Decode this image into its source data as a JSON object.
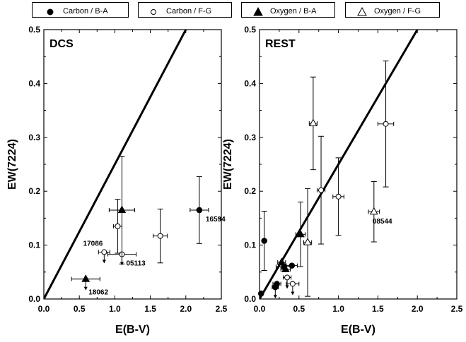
{
  "legend": [
    {
      "label": "Carbon / B-A",
      "marker": "filled-circle"
    },
    {
      "label": "Carbon / F-G",
      "marker": "open-circle"
    },
    {
      "label": "Oxygen / B-A",
      "marker": "filled-triangle"
    },
    {
      "label": "Oxygen / F-G",
      "marker": "open-triangle"
    }
  ],
  "chart_data": [
    {
      "type": "scatter",
      "title": "DCS",
      "xlabel": "E(B-V)",
      "ylabel": "EW(7224)",
      "xlim": [
        0.0,
        2.5
      ],
      "ylim": [
        0.0,
        0.5
      ],
      "xticks": [
        "0.0",
        "0.5",
        "1.0",
        "1.5",
        "2.0",
        "2.5"
      ],
      "yticks": [
        "0.0",
        "0.1",
        "0.2",
        "0.3",
        "0.4",
        "0.5"
      ],
      "reference_line": {
        "x": [
          0.0,
          2.0
        ],
        "y": [
          0.0,
          0.5
        ]
      },
      "series": [
        {
          "name": "Carbon / B-A",
          "marker": "filled-circle",
          "points": [
            {
              "x": 2.19,
              "y": 0.165,
              "xerr": 0.13,
              "yerr": 0.062,
              "label": "16594"
            }
          ]
        },
        {
          "name": "Carbon / F-G",
          "marker": "open-circle",
          "points": [
            {
              "x": 0.85,
              "y": 0.087,
              "xerr": 0.08,
              "yerr": 0.0,
              "label": "17086",
              "upper_limit": true
            },
            {
              "x": 1.1,
              "y": 0.083,
              "xerr": 0.2,
              "yerr": 0.0,
              "label": "05113",
              "upper_limit": true
            },
            {
              "x": 1.64,
              "y": 0.117,
              "xerr": 0.1,
              "yerr": 0.05
            },
            {
              "x": 1.04,
              "y": 0.135,
              "xerr": 0.06,
              "yerr": 0.05
            }
          ]
        },
        {
          "name": "Oxygen / B-A",
          "marker": "filled-triangle",
          "points": [
            {
              "x": 1.1,
              "y": 0.165,
              "xerr": 0.18,
              "yerr": 0.1
            },
            {
              "x": 0.59,
              "y": 0.037,
              "xerr": 0.2,
              "yerr": 0.0,
              "label": "18062",
              "upper_limit": true
            }
          ]
        }
      ]
    },
    {
      "type": "scatter",
      "title": "REST",
      "xlabel": "E(B-V)",
      "ylabel": "EW(7224)",
      "xlim": [
        0.0,
        2.5
      ],
      "ylim": [
        0.0,
        0.5
      ],
      "xticks": [
        "0.0",
        "0.5",
        "1.0",
        "1.5",
        "2.0",
        "2.5"
      ],
      "yticks": [
        "0.0",
        "0.1",
        "0.2",
        "0.3",
        "0.4",
        "0.5"
      ],
      "reference_line": {
        "x": [
          0.0,
          2.0
        ],
        "y": [
          0.0,
          0.5
        ]
      },
      "series": [
        {
          "name": "Carbon / B-A",
          "marker": "filled-circle",
          "points": [
            {
              "x": 0.06,
              "y": 0.108,
              "xerr": 0.0,
              "yerr": 0.055
            },
            {
              "x": 0.22,
              "y": 0.028,
              "xerr": 0.05,
              "yerr": 0.0
            },
            {
              "x": 0.2,
              "y": 0.022,
              "xerr": 0.04,
              "yerr": 0.0,
              "upper_limit": true
            },
            {
              "x": 0.31,
              "y": 0.06,
              "xerr": 0.1,
              "yerr": 0.0
            },
            {
              "x": 0.41,
              "y": 0.062,
              "xerr": 0.07,
              "yerr": 0.0
            },
            {
              "x": 0.02,
              "y": 0.01,
              "xerr": 0.0,
              "yerr": 0.0
            }
          ]
        },
        {
          "name": "Carbon / F-G",
          "marker": "open-circle",
          "points": [
            {
              "x": 1.6,
              "y": 0.325,
              "xerr": 0.1,
              "yerr": 0.117
            },
            {
              "x": 0.78,
              "y": 0.202,
              "xerr": 0.05,
              "yerr": 0.1
            },
            {
              "x": 1.0,
              "y": 0.19,
              "xerr": 0.07,
              "yerr": 0.072
            },
            {
              "x": 0.35,
              "y": 0.04,
              "xerr": 0.05,
              "yerr": 0.0,
              "upper_limit": true
            },
            {
              "x": 0.42,
              "y": 0.028,
              "xerr": 0.08,
              "yerr": 0.0,
              "upper_limit": true
            }
          ]
        },
        {
          "name": "Oxygen / B-A",
          "marker": "filled-triangle",
          "points": [
            {
              "x": 0.52,
              "y": 0.12,
              "xerr": 0.06,
              "yerr": 0.06
            },
            {
              "x": 0.28,
              "y": 0.068,
              "xerr": 0.05,
              "yerr": 0.0
            },
            {
              "x": 0.33,
              "y": 0.055,
              "xerr": 0.06,
              "yerr": 0.0
            }
          ]
        },
        {
          "name": "Oxygen / F-G",
          "marker": "open-triangle",
          "points": [
            {
              "x": 0.68,
              "y": 0.326,
              "xerr": 0.05,
              "yerr": 0.086
            },
            {
              "x": 1.45,
              "y": 0.162,
              "xerr": 0.07,
              "yerr": 0.056,
              "label": "08544"
            },
            {
              "x": 0.61,
              "y": 0.105,
              "xerr": 0.05,
              "yerr": 0.1
            }
          ]
        }
      ]
    }
  ]
}
